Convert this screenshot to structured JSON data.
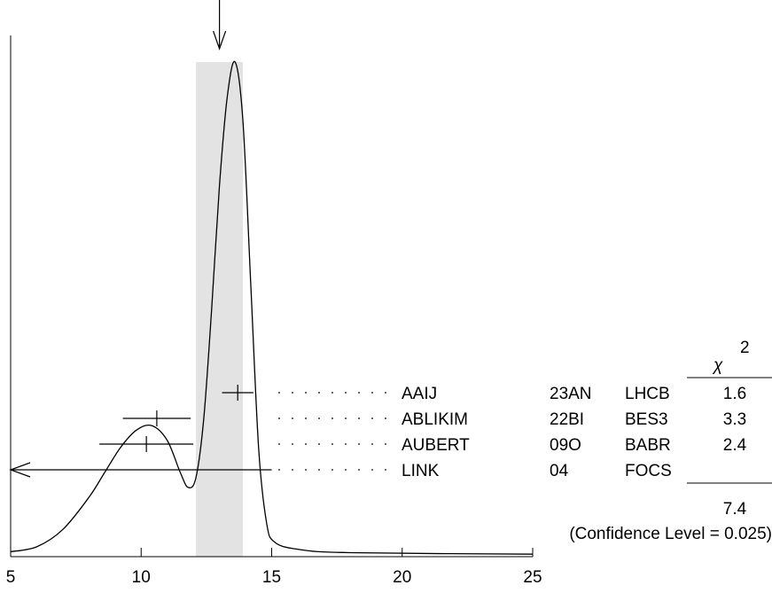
{
  "chart_data": {
    "type": "ideogram",
    "xlim": [
      5,
      25
    ],
    "x_ticks": [
      5,
      10,
      15,
      20,
      25
    ],
    "tick_labels": [
      "5",
      "10",
      "15",
      "20",
      "25"
    ],
    "weighted_average": {
      "value": 13.0,
      "error": 0.9
    },
    "shaded_band": [
      12.1,
      13.9
    ],
    "curve": [
      {
        "x": 5.0,
        "y": 0.01
      },
      {
        "x": 6.0,
        "y": 0.02
      },
      {
        "x": 7.0,
        "y": 0.055
      },
      {
        "x": 8.0,
        "y": 0.12
      },
      {
        "x": 8.6,
        "y": 0.17
      },
      {
        "x": 9.2,
        "y": 0.22
      },
      {
        "x": 9.8,
        "y": 0.255
      },
      {
        "x": 10.4,
        "y": 0.265
      },
      {
        "x": 11.0,
        "y": 0.235
      },
      {
        "x": 11.5,
        "y": 0.17
      },
      {
        "x": 11.8,
        "y": 0.14
      },
      {
        "x": 12.1,
        "y": 0.16
      },
      {
        "x": 12.4,
        "y": 0.28
      },
      {
        "x": 12.7,
        "y": 0.5
      },
      {
        "x": 13.0,
        "y": 0.75
      },
      {
        "x": 13.3,
        "y": 0.93
      },
      {
        "x": 13.6,
        "y": 1.0
      },
      {
        "x": 13.9,
        "y": 0.88
      },
      {
        "x": 14.2,
        "y": 0.55
      },
      {
        "x": 14.5,
        "y": 0.22
      },
      {
        "x": 14.8,
        "y": 0.07
      },
      {
        "x": 15.1,
        "y": 0.03
      },
      {
        "x": 16.0,
        "y": 0.015
      },
      {
        "x": 18.0,
        "y": 0.008
      },
      {
        "x": 25.0,
        "y": 0.005
      }
    ],
    "measurements": [
      {
        "author": "AAIJ",
        "ref": "23AN",
        "experiment": "LHCB",
        "chi2": "1.6",
        "value": 13.7,
        "error_low": 0.6,
        "error_high": 0.6
      },
      {
        "author": "ABLIKIM",
        "ref": "22BI",
        "experiment": "BES3",
        "chi2": "3.3",
        "value": 10.6,
        "error_low": 1.3,
        "error_high": 1.3
      },
      {
        "author": "AUBERT",
        "ref": "09O",
        "experiment": "BABR",
        "chi2": "2.4",
        "value": 10.2,
        "error_low": 1.8,
        "error_high": 1.8
      },
      {
        "author": "LINK",
        "ref": "04",
        "experiment": "FOCS",
        "chi2": "",
        "value": 10.2,
        "error_low": null,
        "error_high": 15.0,
        "upper_arrow": true
      }
    ],
    "chi2_header": "χ",
    "chi2_superscript": "2",
    "chi2_total": "7.4",
    "confidence_level": "(Confidence Level = 0.025)"
  }
}
